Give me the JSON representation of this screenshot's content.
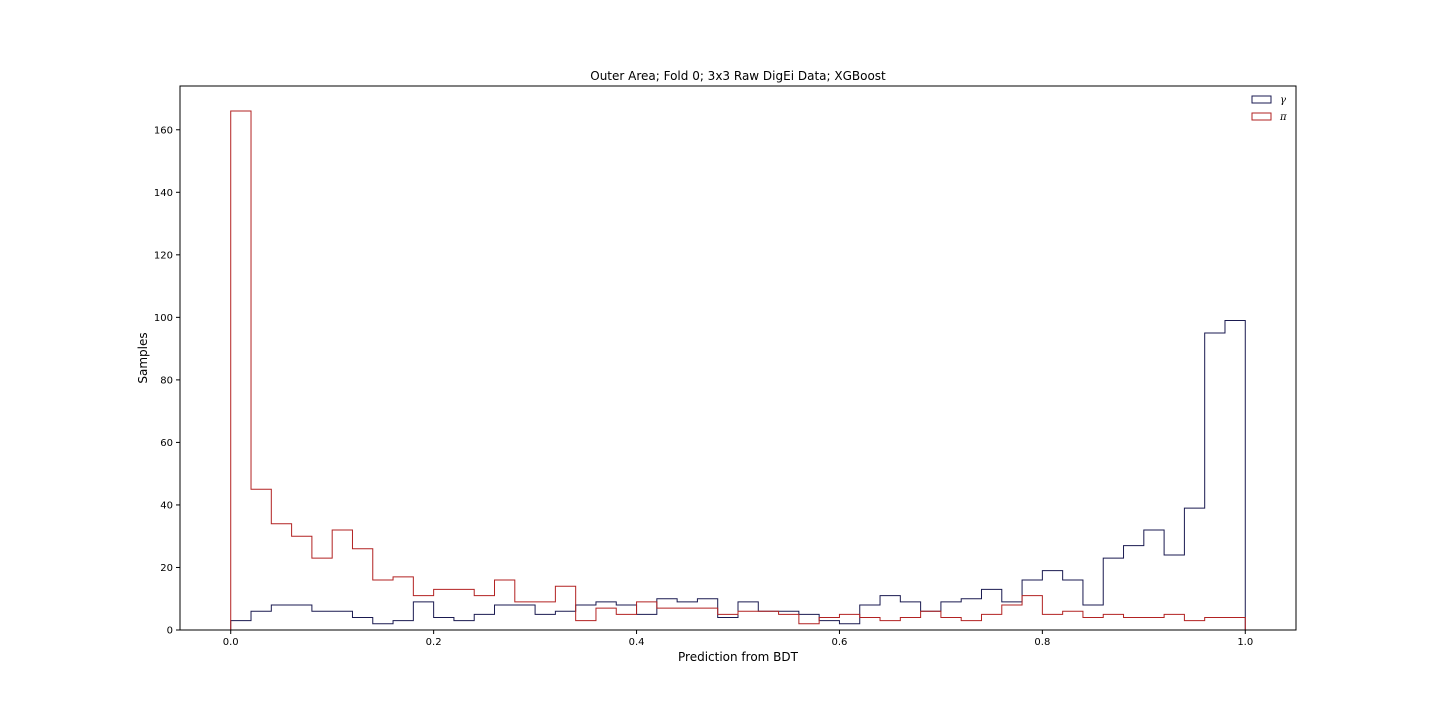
{
  "chart_data": {
    "type": "histogram-step",
    "title": "Outer Area; Fold 0; 3x3 Raw DigEi Data; XGBoost",
    "xlabel": "Prediction from BDT",
    "ylabel": "Samples",
    "xlim": [
      -0.05,
      1.05
    ],
    "ylim": [
      0,
      174
    ],
    "xticks": [
      0.0,
      0.2,
      0.4,
      0.6,
      0.8,
      1.0
    ],
    "xtick_labels": [
      "0.0",
      "0.2",
      "0.4",
      "0.6",
      "0.8",
      "1.0"
    ],
    "yticks": [
      0,
      20,
      40,
      60,
      80,
      100,
      120,
      140,
      160
    ],
    "ytick_labels": [
      "0",
      "20",
      "40",
      "60",
      "80",
      "100",
      "120",
      "140",
      "160"
    ],
    "bin_edges_range": [
      0.0,
      1.0
    ],
    "bins": 50,
    "grid": false,
    "legend": "top-right",
    "series": [
      {
        "name": "γ",
        "color": "#1a1a50",
        "values": [
          3,
          6,
          8,
          8,
          6,
          6,
          4,
          2,
          3,
          9,
          4,
          3,
          5,
          8,
          8,
          5,
          6,
          8,
          9,
          8,
          5,
          10,
          9,
          10,
          4,
          9,
          6,
          6,
          5,
          3,
          2,
          8,
          11,
          9,
          6,
          9,
          10,
          13,
          9,
          16,
          19,
          16,
          8,
          23,
          27,
          32,
          24,
          39,
          95,
          99
        ]
      },
      {
        "name": "π",
        "color": "#b22222",
        "values": [
          166,
          45,
          34,
          30,
          23,
          32,
          26,
          16,
          17,
          11,
          13,
          13,
          11,
          16,
          9,
          9,
          14,
          3,
          7,
          5,
          9,
          7,
          7,
          7,
          5,
          6,
          6,
          5,
          2,
          4,
          5,
          4,
          3,
          4,
          6,
          4,
          3,
          5,
          8,
          11,
          5,
          6,
          4,
          5,
          4,
          4,
          5,
          3,
          4,
          4
        ]
      }
    ]
  }
}
